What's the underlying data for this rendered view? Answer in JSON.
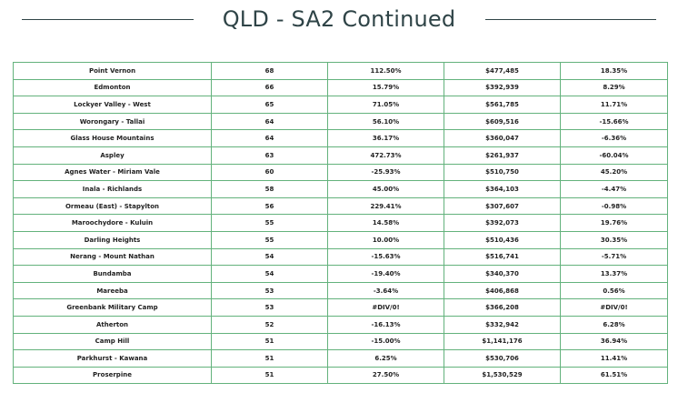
{
  "title": "QLD - SA2 Continued",
  "rows": [
    [
      "Point Vernon",
      "68",
      "112.50%",
      "$477,485",
      "18.35%"
    ],
    [
      "Edmonton",
      "66",
      "15.79%",
      "$392,939",
      "8.29%"
    ],
    [
      "Lockyer Valley - West",
      "65",
      "71.05%",
      "$561,785",
      "11.71%"
    ],
    [
      "Worongary - Tallai",
      "64",
      "56.10%",
      "$609,516",
      "-15.66%"
    ],
    [
      "Glass House Mountains",
      "64",
      "36.17%",
      "$360,047",
      "-6.36%"
    ],
    [
      "Aspley",
      "63",
      "472.73%",
      "$261,937",
      "-60.04%"
    ],
    [
      "Agnes Water - Miriam Vale",
      "60",
      "-25.93%",
      "$510,750",
      "45.20%"
    ],
    [
      "Inala - Richlands",
      "58",
      "45.00%",
      "$364,103",
      "-4.47%"
    ],
    [
      "Ormeau (East) - Stapylton",
      "56",
      "229.41%",
      "$307,607",
      "-0.98%"
    ],
    [
      "Maroochydore - Kuluin",
      "55",
      "14.58%",
      "$392,073",
      "19.76%"
    ],
    [
      "Darling Heights",
      "55",
      "10.00%",
      "$510,436",
      "30.35%"
    ],
    [
      "Nerang - Mount Nathan",
      "54",
      "-15.63%",
      "$516,741",
      "-5.71%"
    ],
    [
      "Bundamba",
      "54",
      "-19.40%",
      "$340,370",
      "13.37%"
    ],
    [
      "Mareeba",
      "53",
      "-3.64%",
      "$406,868",
      "0.56%"
    ],
    [
      "Greenbank Military Camp",
      "53",
      "#DIV/0!",
      "$366,208",
      "#DIV/0!"
    ],
    [
      "Atherton",
      "52",
      "-16.13%",
      "$332,942",
      "6.28%"
    ],
    [
      "Camp Hill",
      "51",
      "-15.00%",
      "$1,141,176",
      "36.94%"
    ],
    [
      "Parkhurst - Kawana",
      "51",
      "6.25%",
      "$530,706",
      "11.41%"
    ],
    [
      "Proserpine",
      "51",
      "27.50%",
      "$1,530,529",
      "61.51%"
    ]
  ],
  "colors": {
    "title": "#2f4447",
    "border": "#63b27c",
    "text": "#222222"
  }
}
